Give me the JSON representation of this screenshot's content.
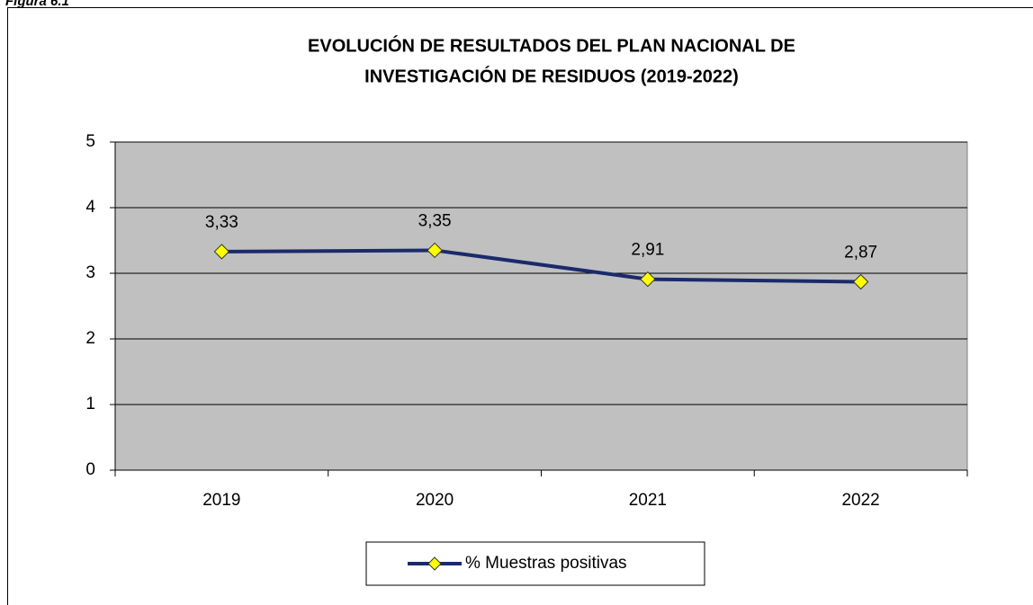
{
  "caption": "Figura 6.1",
  "chart_data": {
    "type": "line",
    "title": [
      "EVOLUCIÓN DE RESULTADOS DEL PLAN NACIONAL DE",
      "INVESTIGACIÓN DE RESIDUOS (2019-2022)"
    ],
    "categories": [
      "2019",
      "2020",
      "2021",
      "2022"
    ],
    "series": [
      {
        "name": "% Muestras positivas",
        "color": "#1a2a6c",
        "marker_color": "#ffff00",
        "values": [
          3.33,
          3.35,
          2.91,
          2.87
        ],
        "value_labels": [
          "3,33",
          "3,35",
          "2,91",
          "2,87"
        ]
      }
    ],
    "ylim": [
      0,
      5
    ],
    "yticks": [
      0,
      1,
      2,
      3,
      4,
      5
    ],
    "grid": true,
    "plot_background": "#c0c0c0",
    "legend": "bottom"
  }
}
